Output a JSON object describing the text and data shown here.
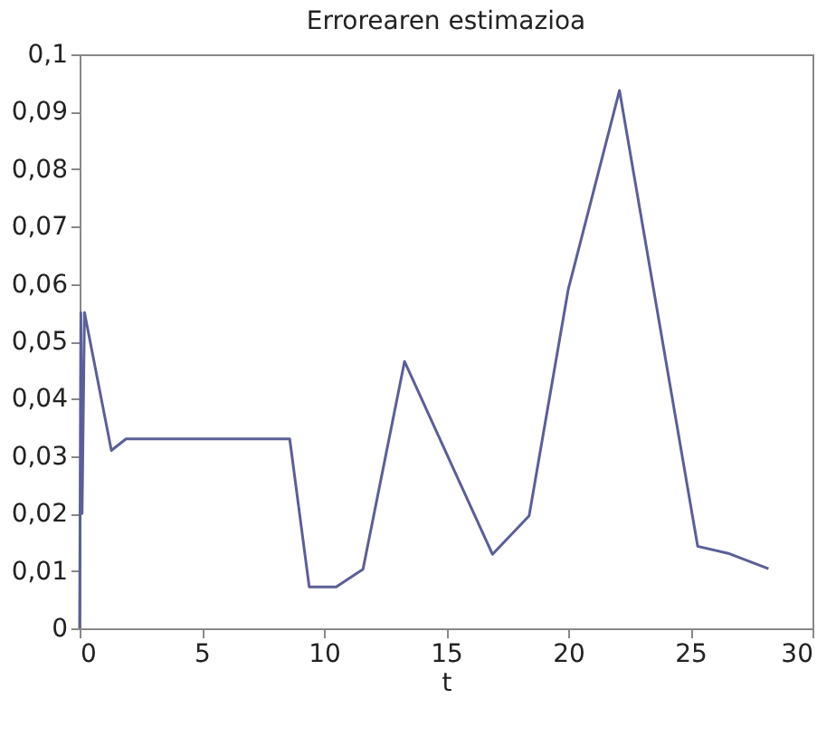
{
  "chart_data": {
    "type": "line",
    "title": "Errorearen estimazioa",
    "xlabel": "t",
    "x": [
      0,
      0.05,
      0.1,
      0.2,
      1.3,
      1.9,
      3.75,
      8.6,
      9.4,
      10.5,
      11.6,
      13.3,
      16.9,
      18.4,
      20.0,
      22.1,
      25.3,
      26.6,
      28.2
    ],
    "series": [
      {
        "color": "#5a5f96",
        "values": [
          0,
          0.055,
          0.02,
          0.055,
          0.031,
          0.033,
          0.033,
          0.033,
          0.0072,
          0.0072,
          0.0103,
          0.0465,
          0.0129,
          0.0196,
          0.059,
          0.0937,
          0.0143,
          0.013,
          0.0104
        ]
      }
    ],
    "xlim": [
      0,
      30
    ],
    "xticks": [
      0,
      5,
      10,
      15,
      20,
      25,
      30
    ],
    "ylim": [
      0,
      0.1
    ],
    "yticks": [
      {
        "value": 0,
        "label": "0"
      },
      {
        "value": 0.01,
        "label": "0,01"
      },
      {
        "value": 0.02,
        "label": "0,02"
      },
      {
        "value": 0.03,
        "label": "0,03"
      },
      {
        "value": 0.04,
        "label": "0,04"
      },
      {
        "value": 0.05,
        "label": "0,05"
      },
      {
        "value": 0.06,
        "label": "0,06"
      },
      {
        "value": 0.07,
        "label": "0,07"
      },
      {
        "value": 0.08,
        "label": "0,08"
      },
      {
        "value": 0.09,
        "label": "0,09"
      },
      {
        "value": 0.1,
        "label": "0,1"
      }
    ],
    "grid": false,
    "marker": "none",
    "line_style": "solid"
  }
}
